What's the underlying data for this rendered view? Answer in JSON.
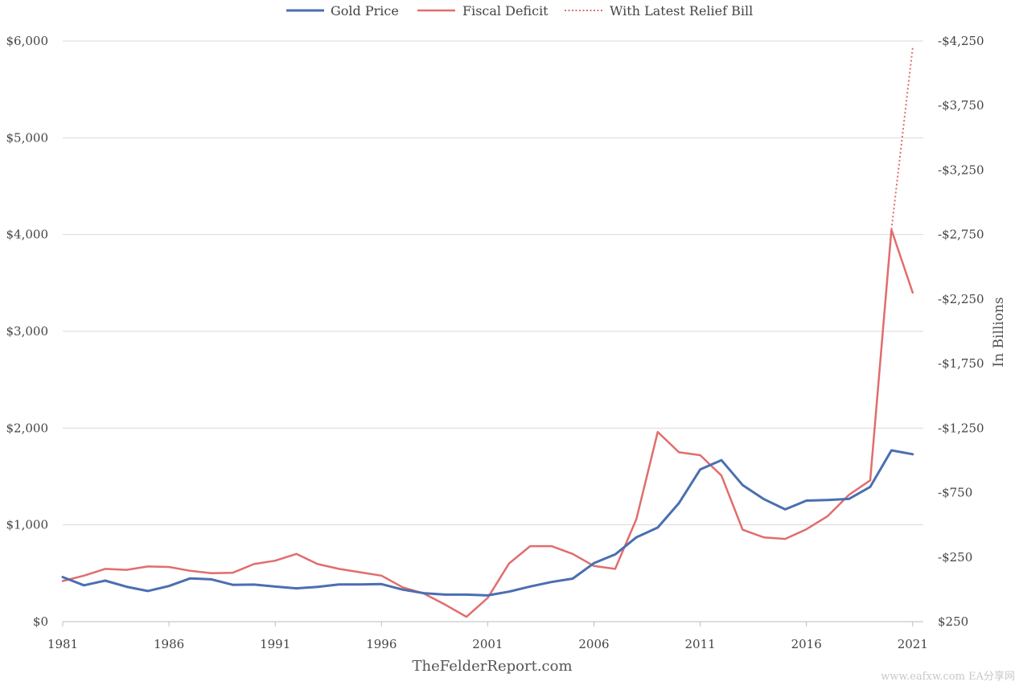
{
  "chart_data": {
    "type": "line",
    "title": "",
    "source_text": "TheFelderReport.com",
    "watermark": "www.eafxw.com  EA分享网",
    "x": [
      1981,
      1982,
      1983,
      1984,
      1985,
      1986,
      1987,
      1988,
      1989,
      1990,
      1991,
      1992,
      1993,
      1994,
      1995,
      1996,
      1997,
      1998,
      1999,
      2000,
      2001,
      2002,
      2003,
      2004,
      2005,
      2006,
      2007,
      2008,
      2009,
      2010,
      2011,
      2012,
      2013,
      2014,
      2015,
      2016,
      2017,
      2018,
      2019,
      2020,
      2021
    ],
    "xticks": [
      "1981",
      "1986",
      "1991",
      "1996",
      "2001",
      "2006",
      "2011",
      "2016",
      "2021"
    ],
    "left_axis": {
      "ticks": [
        "$0",
        "$1,000",
        "$2,000",
        "$3,000",
        "$4,000",
        "$5,000",
        "$6,000"
      ],
      "ylim": [
        0,
        6000
      ]
    },
    "right_axis": {
      "label": "In Billions",
      "ticks": [
        "$250",
        "-$250",
        "-$750",
        "-$1,250",
        "-$1,750",
        "-$2,250",
        "-$2,750",
        "-$3,250",
        "-$3,750",
        "-$4,250"
      ],
      "ylim": [
        250,
        -4250
      ]
    },
    "grid": true,
    "legend_position": "top-center",
    "series": [
      {
        "name": "Gold Price",
        "axis": "left",
        "color": "#4a6fb1",
        "style": "solid",
        "values": [
          460,
          376,
          424,
          361,
          317,
          368,
          447,
          437,
          381,
          383,
          362,
          344,
          360,
          384,
          384,
          388,
          331,
          294,
          279,
          279,
          271,
          310,
          363,
          410,
          445,
          604,
          695,
          872,
          972,
          1225,
          1572,
          1669,
          1411,
          1266,
          1160,
          1251,
          1257,
          1268,
          1393,
          1770,
          1730
        ]
      },
      {
        "name": "Fiscal Deficit",
        "axis": "left",
        "color": "#e16d6d",
        "style": "solid",
        "values": [
          420,
          475,
          545,
          535,
          570,
          565,
          525,
          500,
          505,
          595,
          630,
          700,
          595,
          545,
          510,
          475,
          355,
          290,
          175,
          50,
          245,
          600,
          780,
          780,
          700,
          575,
          545,
          1060,
          1960,
          1750,
          1720,
          1510,
          950,
          870,
          855,
          955,
          1090,
          1310,
          1460,
          4050,
          3400
        ]
      },
      {
        "name": "With Latest Relief Bill",
        "axis": "left",
        "color": "#e16d6d",
        "style": "dotted",
        "values": [
          420,
          475,
          545,
          535,
          570,
          565,
          525,
          500,
          505,
          595,
          630,
          700,
          595,
          545,
          510,
          475,
          355,
          290,
          175,
          50,
          245,
          600,
          780,
          780,
          700,
          575,
          545,
          1060,
          1960,
          1750,
          1720,
          1510,
          950,
          870,
          855,
          955,
          1090,
          1310,
          1460,
          4050,
          5930
        ]
      }
    ]
  }
}
